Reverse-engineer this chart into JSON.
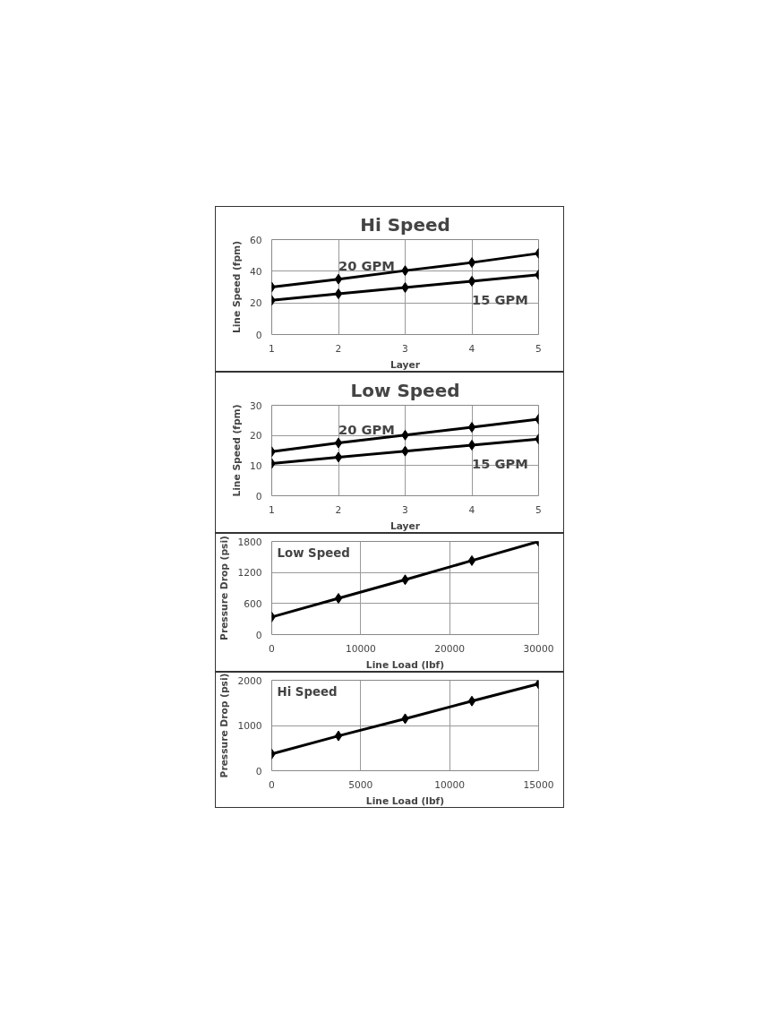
{
  "chart_data": [
    {
      "type": "line",
      "title": "Hi Speed",
      "xlabel": "Layer",
      "ylabel": "Line Speed (fpm)",
      "x": [
        1,
        2,
        3,
        4,
        5
      ],
      "xlim": [
        1,
        5
      ],
      "xticks": [
        1,
        2,
        3,
        4,
        5
      ],
      "ylim": [
        0,
        60
      ],
      "yticks": [
        0,
        20,
        40,
        60
      ],
      "grid": true,
      "marker": "diamond",
      "line_style": "solid",
      "series": [
        {
          "name": "20 GPM",
          "color": "#000000",
          "values": [
            30,
            35,
            40.4,
            45.5,
            51.3
          ]
        },
        {
          "name": "15 GPM",
          "color": "#000000",
          "values": [
            21.6,
            25.7,
            29.7,
            33.7,
            37.8
          ]
        }
      ]
    },
    {
      "type": "line",
      "title": "Low Speed",
      "xlabel": "Layer",
      "ylabel": "Line Speed (fpm)",
      "x": [
        1,
        2,
        3,
        4,
        5
      ],
      "xlim": [
        1,
        5
      ],
      "xticks": [
        1,
        2,
        3,
        4,
        5
      ],
      "ylim": [
        0,
        30
      ],
      "yticks": [
        0,
        10,
        20,
        30
      ],
      "grid": true,
      "marker": "diamond",
      "line_style": "solid",
      "series": [
        {
          "name": "20 GPM",
          "color": "#000000",
          "values": [
            14.6,
            17.5,
            20.1,
            22.7,
            25.4
          ]
        },
        {
          "name": "15 GPM",
          "color": "#000000",
          "values": [
            10.7,
            12.8,
            14.8,
            16.8,
            18.8
          ]
        }
      ]
    },
    {
      "type": "line",
      "annotations": [
        "Low Speed"
      ],
      "xlabel": "Line Load (lbf)",
      "ylabel": "Pressure Drop (psi)",
      "x": [
        0,
        7500,
        15000,
        22500,
        30000
      ],
      "xlim": [
        0,
        30000
      ],
      "xticks": [
        0,
        10000,
        20000,
        30000
      ],
      "ylim": [
        0,
        1800
      ],
      "yticks": [
        0,
        600,
        1200,
        1800
      ],
      "grid": true,
      "marker": "diamond",
      "line_style": "solid",
      "series": [
        {
          "color": "#000000",
          "values": [
            340,
            700,
            1060,
            1430,
            1800
          ]
        }
      ]
    },
    {
      "type": "line",
      "annotations": [
        "Hi Speed"
      ],
      "xlabel": "Line Load (lbf)",
      "ylabel": "Pressure Drop (psi)",
      "x": [
        0,
        3750,
        7500,
        11250,
        15000
      ],
      "xlim": [
        0,
        15000
      ],
      "xticks": [
        0,
        5000,
        10000,
        15000
      ],
      "ylim": [
        0,
        2000
      ],
      "yticks": [
        0,
        1000,
        2000
      ],
      "grid": true,
      "marker": "diamond",
      "line_style": "solid",
      "series": [
        {
          "color": "#000000",
          "values": [
            370,
            770,
            1150,
            1540,
            1920
          ]
        }
      ]
    }
  ]
}
